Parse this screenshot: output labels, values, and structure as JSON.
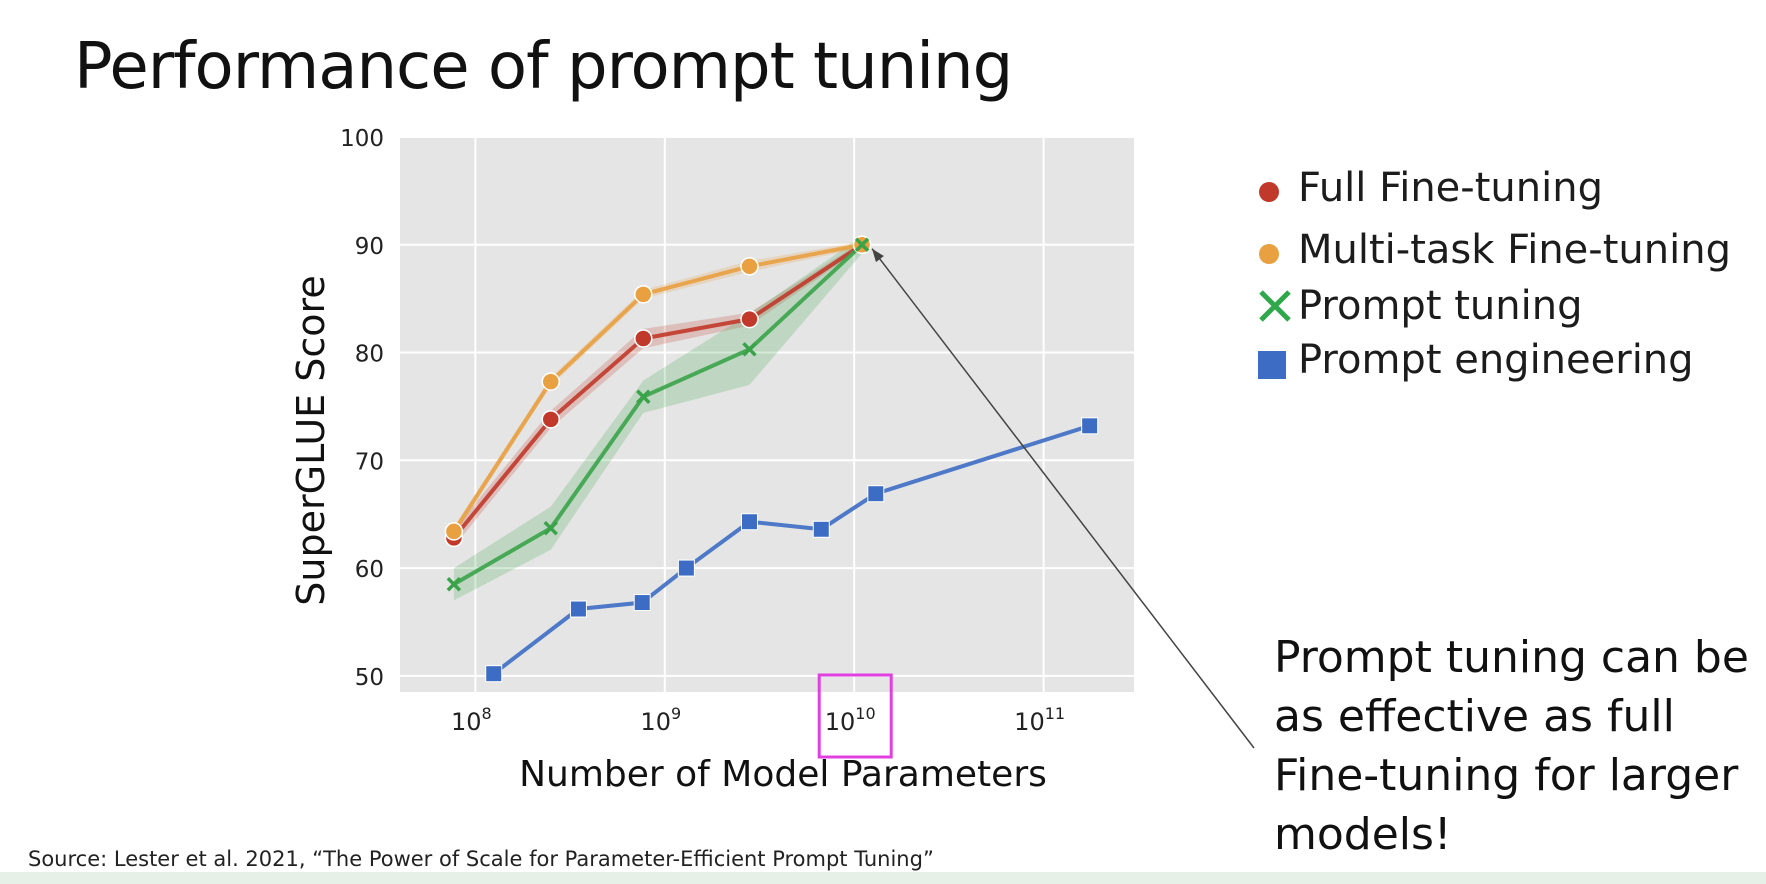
{
  "slide": {
    "title": "Performance of prompt tuning",
    "callout": "Prompt tuning can be as effective as full Fine-tuning for larger models!",
    "source": "Source:  Lester et al. 2021, “The Power of Scale for Parameter-Efficient Prompt Tuning”"
  },
  "chart_data": {
    "type": "line",
    "xlabel": "Number of Model Parameters",
    "ylabel": "SuperGLUE Score",
    "x_scale": "log",
    "xlim": [
      40000000,
      300000000000
    ],
    "ylim": [
      48.5,
      100
    ],
    "x_ticks": [
      100000000,
      1000000000,
      10000000000,
      100000000000
    ],
    "x_tick_labels": [
      {
        "base": "10",
        "exp": "8"
      },
      {
        "base": "10",
        "exp": "9"
      },
      {
        "base": "10",
        "exp": "10"
      },
      {
        "base": "10",
        "exp": "11"
      }
    ],
    "y_ticks": [
      50,
      60,
      70,
      80,
      90,
      100
    ],
    "grid": true,
    "legend_position": "right",
    "highlight_tick": "10^10",
    "annotation_arrow": {
      "from": "callout",
      "to_x": 11000000000,
      "to_y": 90
    },
    "series": [
      {
        "name": "Full Fine-tuning",
        "color": "#c0392b",
        "marker": "circle",
        "x": [
          77000000,
          250000000,
          770000000,
          2800000000,
          11000000000
        ],
        "y": [
          62.8,
          73.8,
          81.3,
          83.1,
          90.0
        ],
        "band": [
          0.8,
          0.8,
          0.9,
          0.6,
          0.3
        ]
      },
      {
        "name": "Multi-task Fine-tuning",
        "color": "#e8a040",
        "marker": "circle",
        "x": [
          77000000,
          250000000,
          770000000,
          2800000000,
          11000000000
        ],
        "y": [
          63.4,
          77.3,
          85.4,
          88.0,
          90.0
        ],
        "band": [
          0.4,
          0.4,
          0.4,
          0.5,
          0.3
        ]
      },
      {
        "name": "Prompt tuning",
        "color": "#3aa34a",
        "marker": "x",
        "x": [
          77000000,
          250000000,
          770000000,
          2800000000,
          11000000000
        ],
        "y": [
          58.5,
          63.7,
          75.9,
          80.3,
          90.0
        ],
        "band": [
          1.5,
          2.0,
          1.5,
          3.3,
          0.8
        ]
      },
      {
        "name": "Prompt engineering",
        "color": "#3d6cc4",
        "marker": "square",
        "x": [
          125000000,
          350000000,
          760000000,
          1300000000,
          2800000000,
          6700000000,
          13000000000,
          175000000000
        ],
        "y": [
          50.2,
          56.2,
          56.8,
          60.0,
          64.3,
          63.6,
          66.9,
          73.2
        ],
        "band": []
      }
    ]
  },
  "legend": [
    {
      "label": "Full Fine-tuning",
      "color": "#c0392b",
      "icon": "circle-marker-icon"
    },
    {
      "label": "Multi-task Fine-tuning",
      "color": "#e8a040",
      "icon": "circle-marker-icon"
    },
    {
      "label": " Prompt tuning",
      "color": "#2ea84a",
      "icon": "x-marker-icon"
    },
    {
      "label": "Prompt engineering",
      "color": "#3d6cc4",
      "icon": "square-marker-icon"
    }
  ],
  "colors": {
    "plot_bg": "#e5e5e5",
    "grid": "#ffffff",
    "highlight_box": "#e040e0",
    "arrow": "#444444"
  }
}
